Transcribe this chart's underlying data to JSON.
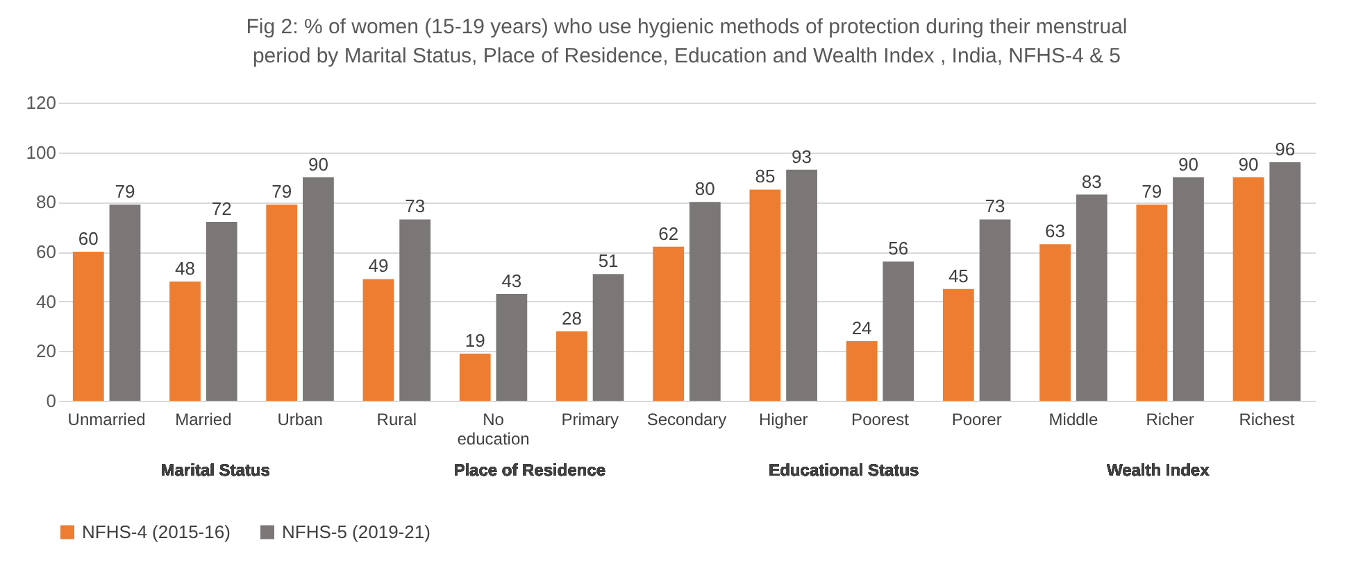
{
  "chart_data": {
    "type": "bar",
    "title": "Fig 2: % of women (15-19 years) who use hygienic methods of protection during their menstrual period by Marital Status, Place of Residence, Education and Wealth Index , India, NFHS-4 & 5",
    "categories": [
      "Unmarried",
      "Married",
      "Urban",
      "Rural",
      "No education",
      "Primary",
      "Secondary",
      "Higher",
      "Poorest",
      "Poorer",
      "Middle",
      "Richer",
      "Richest"
    ],
    "series": [
      {
        "name": "NFHS-4 (2015-16)",
        "color": "#ed7d31",
        "values": [
          60,
          48,
          79,
          49,
          19,
          28,
          62,
          85,
          24,
          45,
          63,
          79,
          90
        ]
      },
      {
        "name": "NFHS-5 (2019-21)",
        "color": "#7b7777",
        "values": [
          79,
          72,
          90,
          73,
          43,
          51,
          80,
          93,
          56,
          73,
          83,
          90,
          96
        ]
      }
    ],
    "ylim": [
      0,
      120
    ],
    "yticks": [
      0,
      20,
      40,
      60,
      80,
      100,
      120
    ],
    "grid": "y",
    "legend": "bottom",
    "data_labels": true,
    "annotations": [
      "Marital Status",
      "Place of Residence",
      "Educational Status",
      "Wealth Index"
    ]
  }
}
